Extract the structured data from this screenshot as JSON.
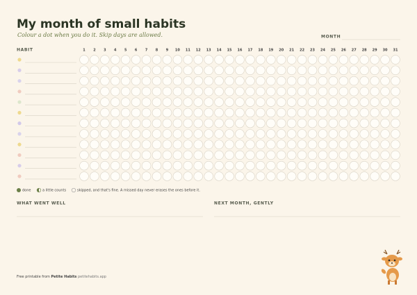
{
  "header": {
    "title": "My month of small habits",
    "subtitle": "Colour a dot when you do it. Skip days are allowed.",
    "month_label": "MONTH"
  },
  "tracker": {
    "habit_label": "HABIT",
    "days": [
      1,
      2,
      3,
      4,
      5,
      6,
      7,
      8,
      9,
      10,
      11,
      12,
      13,
      14,
      15,
      16,
      17,
      18,
      19,
      20,
      21,
      22,
      23,
      24,
      25,
      26,
      27,
      28,
      29,
      30,
      31
    ],
    "rows": [
      {
        "color": "#eed98e"
      },
      {
        "color": "#d7cdea"
      },
      {
        "color": "#d9d3ec"
      },
      {
        "color": "#f0cbbf"
      },
      {
        "color": "#dce6cc"
      },
      {
        "color": "#eed98e"
      },
      {
        "color": "#d2c9ea"
      },
      {
        "color": "#d9d3ec"
      },
      {
        "color": "#eed98e"
      },
      {
        "color": "#f0cbbf"
      },
      {
        "color": "#d7cdea"
      },
      {
        "color": "#f0cbbf"
      }
    ]
  },
  "legend": {
    "done": "done",
    "partial": "a little counts",
    "skipped": "skipped, and that's fine. A missed day never erases the ones before it."
  },
  "sections": {
    "left": "WHAT WENT WELL",
    "right": "NEXT MONTH, GENTLY"
  },
  "footer": {
    "prefix": "Free printable from",
    "brand": "Petite Habits",
    "url": "petitehabits.app"
  }
}
